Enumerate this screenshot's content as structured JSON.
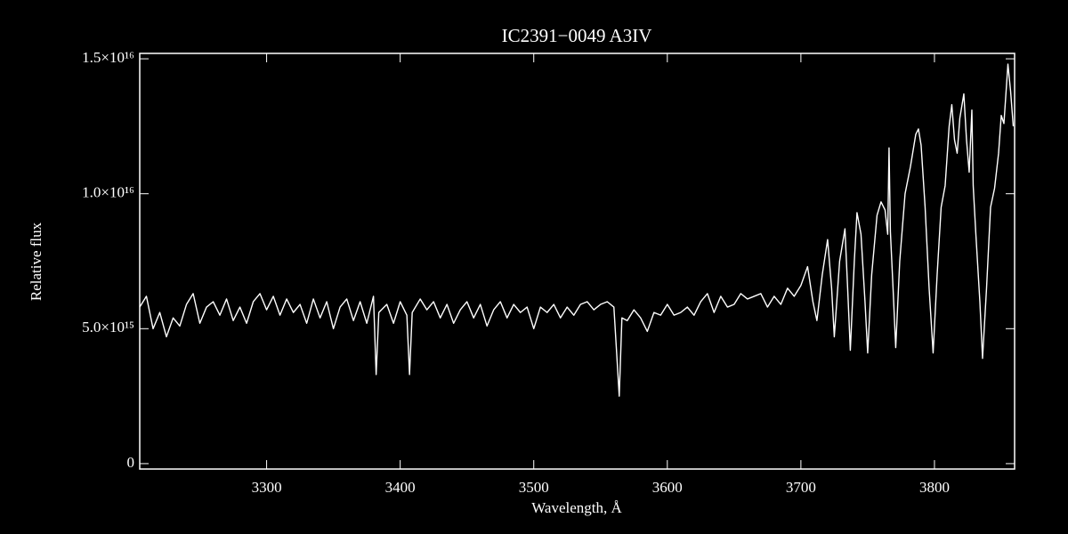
{
  "chart_data": {
    "type": "line",
    "title": "IC2391−0049   A3IV",
    "x_label": "Wavelength, Å",
    "y_label": "Relative flux",
    "color": "#ffffff",
    "xlim": [
      3205,
      3860
    ],
    "ylim": [
      -200000000000000.0,
      1.52e+16
    ],
    "xticks": [
      3300,
      3400,
      3500,
      3600,
      3700,
      3800
    ],
    "yticks": [
      0,
      {
        "value": 5000000000000000.0,
        "label": "5.0×10¹⁵"
      },
      {
        "value": 1e+16,
        "label": "1.0×10¹⁶"
      },
      {
        "value": 1.5e+16,
        "label": "1.5×10¹⁶"
      }
    ],
    "x": [
      3205,
      3210,
      3215,
      3220,
      3225,
      3230,
      3235,
      3240,
      3245,
      3250,
      3255,
      3260,
      3265,
      3270,
      3275,
      3280,
      3285,
      3290,
      3295,
      3300,
      3305,
      3310,
      3315,
      3320,
      3325,
      3330,
      3335,
      3340,
      3345,
      3350,
      3355,
      3360,
      3365,
      3370,
      3375,
      3380,
      3382,
      3384,
      3390,
      3395,
      3400,
      3405,
      3407,
      3409,
      3415,
      3420,
      3425,
      3430,
      3435,
      3440,
      3445,
      3450,
      3455,
      3460,
      3465,
      3470,
      3475,
      3480,
      3485,
      3490,
      3495,
      3500,
      3505,
      3510,
      3515,
      3520,
      3525,
      3530,
      3535,
      3540,
      3545,
      3550,
      3555,
      3560,
      3564,
      3566,
      3570,
      3575,
      3580,
      3585,
      3590,
      3595,
      3600,
      3605,
      3610,
      3615,
      3620,
      3625,
      3630,
      3635,
      3640,
      3645,
      3650,
      3655,
      3660,
      3665,
      3670,
      3675,
      3680,
      3685,
      3690,
      3695,
      3700,
      3705,
      3709,
      3712,
      3716,
      3720,
      3723,
      3725,
      3729,
      3733,
      3735,
      3737,
      3740,
      3742,
      3745,
      3748,
      3750,
      3753,
      3757,
      3760,
      3763,
      3765,
      3766,
      3767,
      3769,
      3771,
      3774,
      3778,
      3782,
      3786,
      3788,
      3790,
      3793,
      3796,
      3799,
      3802,
      3805,
      3808,
      3811,
      3813,
      3815,
      3817,
      3819,
      3822,
      3824,
      3826,
      3828,
      3829,
      3831,
      3834,
      3836,
      3839,
      3842,
      3845,
      3848,
      3850,
      3852,
      3855,
      3857,
      3859
    ],
    "values": [
      5800000000000000.0,
      6200000000000000.0,
      5000000000000000.0,
      5600000000000000.0,
      4700000000000000.0,
      5400000000000000.0,
      5100000000000000.0,
      5900000000000000.0,
      6300000000000000.0,
      5200000000000000.0,
      5800000000000000.0,
      6000000000000000.0,
      5500000000000000.0,
      6100000000000000.0,
      5300000000000000.0,
      5800000000000000.0,
      5200000000000000.0,
      6000000000000000.0,
      6300000000000000.0,
      5700000000000000.0,
      6200000000000000.0,
      5500000000000000.0,
      6100000000000000.0,
      5600000000000000.0,
      5900000000000000.0,
      5200000000000000.0,
      6100000000000000.0,
      5400000000000000.0,
      6000000000000000.0,
      5000000000000000.0,
      5800000000000000.0,
      6100000000000000.0,
      5300000000000000.0,
      6000000000000000.0,
      5200000000000000.0,
      6200000000000000.0,
      3300000000000000.0,
      5600000000000000.0,
      5900000000000000.0,
      5200000000000000.0,
      6000000000000000.0,
      5500000000000000.0,
      3300000000000000.0,
      5600000000000000.0,
      6100000000000000.0,
      5700000000000000.0,
      6000000000000000.0,
      5400000000000000.0,
      5900000000000000.0,
      5200000000000000.0,
      5700000000000000.0,
      6000000000000000.0,
      5400000000000000.0,
      5900000000000000.0,
      5100000000000000.0,
      5700000000000000.0,
      6000000000000000.0,
      5400000000000000.0,
      5900000000000000.0,
      5600000000000000.0,
      5800000000000000.0,
      5000000000000000.0,
      5800000000000000.0,
      5600000000000000.0,
      5900000000000000.0,
      5400000000000000.0,
      5800000000000000.0,
      5500000000000000.0,
      5900000000000000.0,
      6000000000000000.0,
      5700000000000000.0,
      5900000000000000.0,
      6000000000000000.0,
      5800000000000000.0,
      2500000000000000.0,
      5400000000000000.0,
      5300000000000000.0,
      5700000000000000.0,
      5400000000000000.0,
      4900000000000000.0,
      5600000000000000.0,
      5500000000000000.0,
      5900000000000000.0,
      5500000000000000.0,
      5600000000000000.0,
      5800000000000000.0,
      5500000000000000.0,
      6000000000000000.0,
      6300000000000000.0,
      5600000000000000.0,
      6200000000000000.0,
      5800000000000000.0,
      5900000000000000.0,
      6300000000000000.0,
      6100000000000000.0,
      6200000000000000.0,
      6300000000000000.0,
      5800000000000000.0,
      6200000000000000.0,
      5900000000000000.0,
      6500000000000000.0,
      6200000000000000.0,
      6600000000000000.0,
      7300000000000000.0,
      6000000000000000.0,
      5300000000000000.0,
      7000000000000000.0,
      8300000000000000.0,
      6500000000000000.0,
      4700000000000000.0,
      7500000000000000.0,
      8700000000000000.0,
      6500000000000000.0,
      4200000000000000.0,
      7500000000000000.0,
      9300000000000000.0,
      8500000000000000.0,
      6000000000000000.0,
      4100000000000000.0,
      7000000000000000.0,
      9200000000000000.0,
      9700000000000000.0,
      9400000000000000.0,
      8500000000000000.0,
      1.17e+16,
      8600000000000000.0,
      6500000000000000.0,
      4300000000000000.0,
      7500000000000000.0,
      1e+16,
      1.1e+16,
      1.22e+16,
      1.24e+16,
      1.18e+16,
      9500000000000000.0,
      6500000000000000.0,
      4100000000000000.0,
      7000000000000000.0,
      9500000000000000.0,
      1.03e+16,
      1.25e+16,
      1.33e+16,
      1.2e+16,
      1.15e+16,
      1.28e+16,
      1.37e+16,
      1.2e+16,
      1.08e+16,
      1.31e+16,
      1.03e+16,
      8500000000000000.0,
      6000000000000000.0,
      3900000000000000.0,
      6500000000000000.0,
      9500000000000000.0,
      1.02e+16,
      1.15e+16,
      1.29e+16,
      1.26e+16,
      1.48e+16,
      1.38e+16,
      1.25e+16
    ]
  }
}
